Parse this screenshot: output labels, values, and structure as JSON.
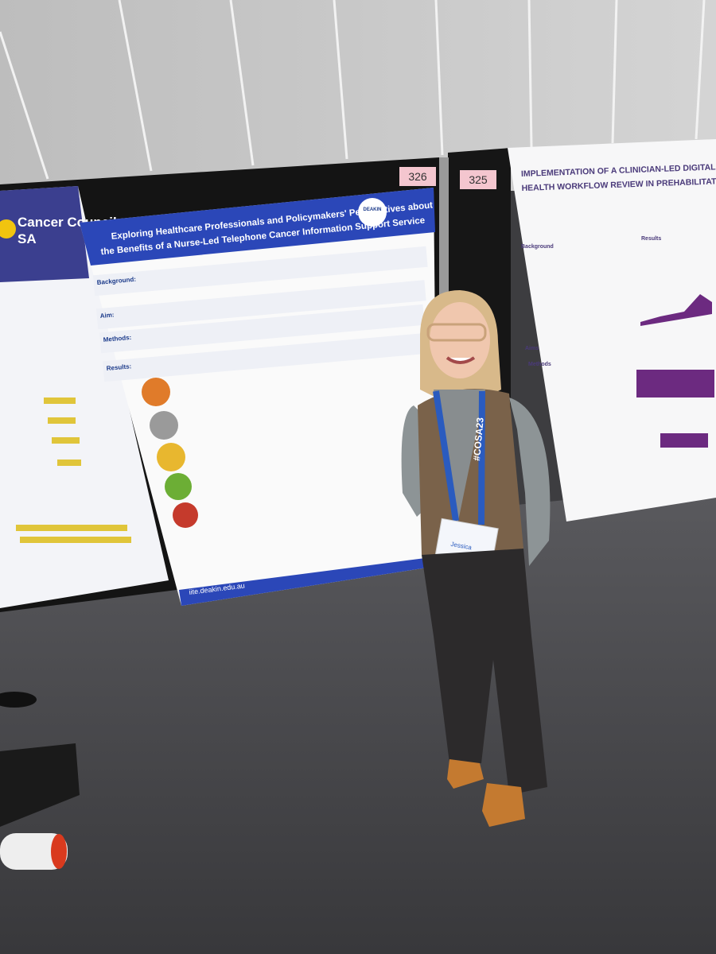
{
  "booth_numbers": [
    "326",
    "325"
  ],
  "left_poster": {
    "org": "Cancer Council",
    "region": "SA"
  },
  "center_poster": {
    "title_line1": "Exploring Healthcare Professionals and Policymakers' Perspectives about",
    "title_line2": "the Benefits of a Nurse-Led Telephone Cancer Information  Support Service",
    "logo": "DEAKIN",
    "sections": [
      "Background:",
      "Aim:",
      "Methods:",
      "Results:"
    ],
    "url": "iite.deakin.edu.au"
  },
  "right_poster": {
    "title_line1": "IMPLEMENTATION OF A CLINICIAN-LED DIGITAL",
    "title_line2": "HEALTH WORKFLOW REVIEW IN PREHABILITATION?",
    "sections": [
      "Background",
      "Aims",
      "Methods",
      "Results"
    ]
  },
  "lanyard": "#COSA23",
  "badge_name": "Jessica"
}
